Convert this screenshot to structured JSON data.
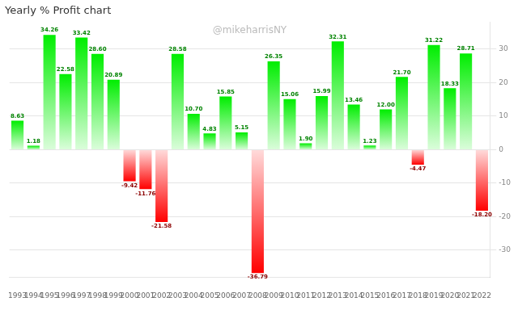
{
  "chart_data": {
    "type": "bar",
    "title": "Yearly % Profit chart",
    "annotations": [
      "@mikeharrisNY"
    ],
    "categories": [
      "1993",
      "1994",
      "1995",
      "1996",
      "1997",
      "1998",
      "1999",
      "2000",
      "2001",
      "2002",
      "2003",
      "2004",
      "2005",
      "2006",
      "2007",
      "2008",
      "2009",
      "2010",
      "2011",
      "2012",
      "2013",
      "2014",
      "2015",
      "2016",
      "2017",
      "2018",
      "2019",
      "2020",
      "2021",
      "2022"
    ],
    "values": [
      8.63,
      1.18,
      34.26,
      22.58,
      33.42,
      28.6,
      20.89,
      -9.42,
      -11.76,
      -21.58,
      28.58,
      10.7,
      4.83,
      15.85,
      5.15,
      -36.79,
      26.35,
      15.06,
      1.9,
      15.99,
      32.31,
      13.46,
      1.23,
      12.0,
      21.7,
      -4.47,
      31.22,
      18.33,
      28.71,
      -18.2
    ],
    "value_labels": [
      "8.63",
      "1.18",
      "34.26",
      "22.58",
      "33.42",
      "28.60",
      "20.89",
      "-9.42",
      "-11.76",
      "-21.58",
      "28.58",
      "10.70",
      "4.83",
      "15.85",
      "5.15",
      "-36.79",
      "26.35",
      "15.06",
      "1.90",
      "15.99",
      "32.31",
      "13.46",
      "1.23",
      "12.00",
      "21.70",
      "-4.47",
      "31.22",
      "18.33",
      "28.71",
      "-18.20"
    ],
    "colors": [
      "#00ee00",
      "#00ee00",
      "#00ee00",
      "#00ee00",
      "#00ee00",
      "#00ee00",
      "#00ee00",
      "#ff0000",
      "#ff0000",
      "#ff0000",
      "#00ee00",
      "#00ee00",
      "#00ee00",
      "#00ee00",
      "#00ee00",
      "#ff0000",
      "#00ee00",
      "#00ee00",
      "#00ee00",
      "#00ee00",
      "#00ee00",
      "#00ee00",
      "#00ee00",
      "#00ee00",
      "#00ee00",
      "#ff0000",
      "#00ee00",
      "#00ee00",
      "#00ee00",
      "#ff0000"
    ],
    "ylim": [
      -38,
      38
    ],
    "yticks": [
      -30,
      -20,
      -10,
      0,
      10,
      20,
      30
    ],
    "grid": true,
    "data_labels": true
  }
}
